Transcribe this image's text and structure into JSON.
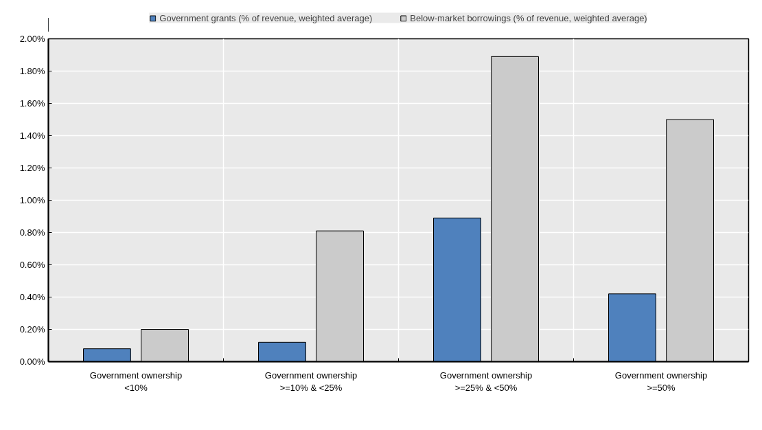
{
  "chart_data": {
    "type": "bar",
    "categories": [
      "Government ownership\n<10%",
      "Government ownership\n>=10% & <25%",
      "Government ownership\n>=25% & <50%",
      "Government ownership\n>=50%"
    ],
    "series": [
      {
        "name": "Government grants (% of revenue, weighted average)",
        "color": "#4f81bd",
        "values": [
          0.08,
          0.12,
          0.89,
          0.42
        ]
      },
      {
        "name": "Below-market borrowings (% of revenue, weighted average)",
        "color": "#cbcbcb",
        "values": [
          0.2,
          0.81,
          1.89,
          1.5
        ]
      }
    ],
    "ylim": [
      0,
      2
    ],
    "yticks": [
      {
        "value": 0,
        "label": "0.00%"
      },
      {
        "value": 0.2,
        "label": "0.20%"
      },
      {
        "value": 0.4,
        "label": "0.40%"
      },
      {
        "value": 0.6,
        "label": "0.60%"
      },
      {
        "value": 0.8,
        "label": "0.80%"
      },
      {
        "value": 1.0,
        "label": "1.00%"
      },
      {
        "value": 1.2,
        "label": "1.20%"
      },
      {
        "value": 1.4,
        "label": "1.40%"
      },
      {
        "value": 1.6,
        "label": "1.60%"
      },
      {
        "value": 1.8,
        "label": "1.80%"
      },
      {
        "value": 2.0,
        "label": "2.00%"
      }
    ],
    "grid": true,
    "legend": "top"
  }
}
